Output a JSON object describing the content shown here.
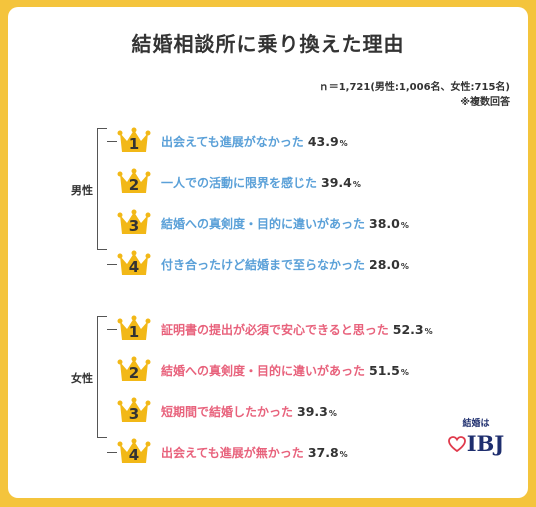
{
  "title": "結婚相談所に乗り換えた理由",
  "note_sample": "ｎ＝1,721(男性:1,006名、女性:715名)",
  "note_multi": "※複数回答",
  "groups": [
    {
      "label": "男性"
    },
    {
      "label": "女性"
    }
  ],
  "colors": {
    "background": "#f4c43c",
    "male_text": "#5aa0d8",
    "female_text": "#e8627c",
    "crown": "#f2b817",
    "value_text": "#333333"
  },
  "icons": {
    "rank": "crown-icon",
    "logo": "heart-icon"
  },
  "percent_sign": "%",
  "chart_data": {
    "type": "table",
    "title": "結婚相談所に乗り換えた理由",
    "series": [
      {
        "name": "男性",
        "ranks": [
          "1",
          "2",
          "3",
          "4"
        ],
        "categories": [
          "出会えても進展がなかった",
          "一人での活動に限界を感じた",
          "結婚への真剣度・目的に違いがあった",
          "付き合ったけど結婚まで至らなかった"
        ],
        "values": [
          "43.9",
          "39.4",
          "38.0",
          "28.0"
        ]
      },
      {
        "name": "女性",
        "ranks": [
          "1",
          "2",
          "3",
          "4"
        ],
        "categories": [
          "証明書の提出が必須で安心できると思った",
          "結婚への真剣度・目的に違いがあった",
          "短期間で結婚したかった",
          "出会えても進展が無かった"
        ],
        "values": [
          "52.3",
          "51.5",
          "39.3",
          "37.8"
        ]
      }
    ]
  },
  "logo": {
    "top_text": "結婚は",
    "main_text": "IBJ"
  }
}
